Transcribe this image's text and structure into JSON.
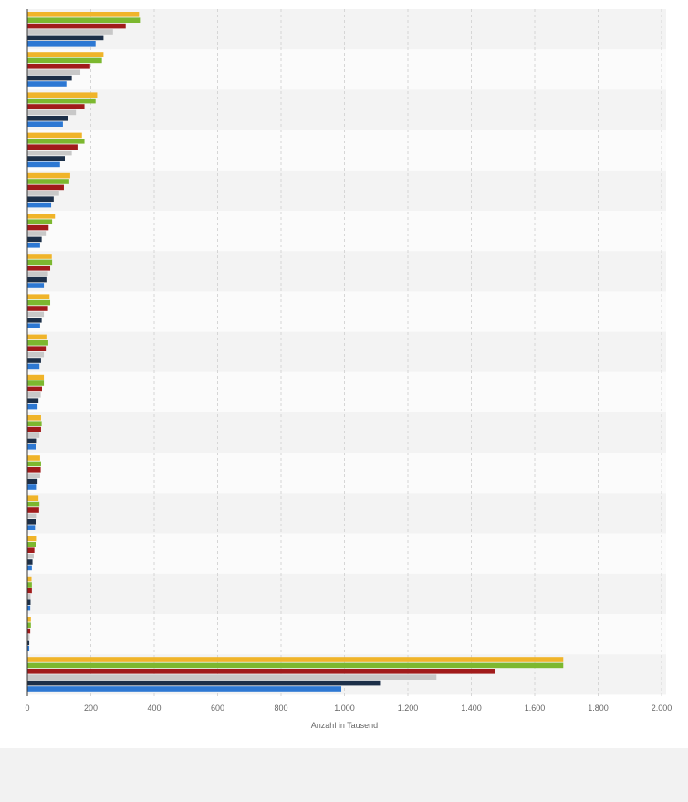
{
  "chart_data": {
    "type": "bar",
    "orientation": "horizontal",
    "xlabel": "Anzahl in Tausend",
    "xlim": [
      0,
      2000
    ],
    "x_ticks": [
      "0",
      "200",
      "400",
      "600",
      "800",
      "1.000",
      "1.200",
      "1.400",
      "1.600",
      "1.800",
      "2.000"
    ],
    "x_tick_values": [
      0,
      200,
      400,
      600,
      800,
      1000,
      1200,
      1400,
      1600,
      1800,
      2000
    ],
    "grid": true,
    "category_labels_visible": false,
    "category_count": 17,
    "series": [
      {
        "color": "#f0b429",
        "values": [
          352,
          240,
          220,
          172,
          135,
          87,
          77,
          70,
          60,
          52,
          43,
          40,
          35,
          30,
          13,
          11,
          1690
        ]
      },
      {
        "color": "#7cb82f",
        "values": [
          355,
          235,
          215,
          180,
          132,
          78,
          78,
          72,
          66,
          52,
          45,
          43,
          38,
          27,
          14,
          11,
          1690
        ]
      },
      {
        "color": "#a11b1b",
        "values": [
          310,
          198,
          180,
          158,
          115,
          67,
          72,
          65,
          58,
          46,
          43,
          42,
          37,
          22,
          14,
          9,
          1475
        ]
      },
      {
        "color": "#c8c8c8",
        "values": [
          270,
          167,
          153,
          140,
          100,
          58,
          65,
          52,
          52,
          42,
          38,
          40,
          30,
          20,
          10,
          7,
          1290
        ]
      },
      {
        "color": "#1c2f48",
        "values": [
          240,
          140,
          127,
          118,
          83,
          45,
          60,
          45,
          43,
          35,
          30,
          32,
          26,
          16,
          10,
          6,
          1115
        ]
      },
      {
        "color": "#2d78d3",
        "values": [
          215,
          123,
          112,
          103,
          75,
          40,
          52,
          40,
          38,
          32,
          28,
          30,
          24,
          14,
          9,
          6,
          990
        ]
      }
    ]
  }
}
